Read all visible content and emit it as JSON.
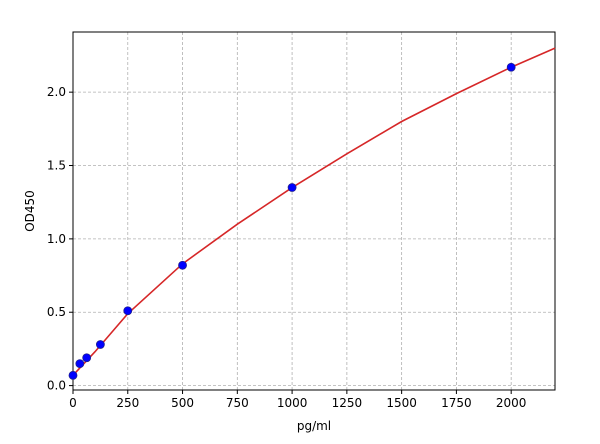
{
  "chart_data": {
    "type": "scatter",
    "xlabel": "pg/ml",
    "ylabel": "OD450",
    "xlim": [
      0,
      2200
    ],
    "ylim": [
      -0.03,
      2.41
    ],
    "xticks": [
      0,
      250,
      500,
      750,
      1000,
      1250,
      1500,
      1750,
      2000
    ],
    "yticks": [
      {
        "value": 0,
        "label": "0.0"
      },
      0.5,
      {
        "value": 1,
        "label": "1.0"
      },
      1.5,
      {
        "value": 2,
        "label": "2.0"
      }
    ],
    "grid": true,
    "series": [
      {
        "type": "line",
        "color": "#d62728",
        "x": [
          0,
          100,
          250,
          500,
          750,
          1000,
          1250,
          1500,
          1750,
          2000,
          2200
        ],
        "values": [
          0.07,
          0.23,
          0.49,
          0.83,
          1.1,
          1.35,
          1.58,
          1.8,
          1.99,
          2.17,
          2.3
        ]
      },
      {
        "type": "scatter",
        "color": "#0000ff",
        "x": [
          0,
          31.25,
          62.5,
          125,
          250,
          500,
          1000,
          2000
        ],
        "values": [
          0.07,
          0.15,
          0.19,
          0.28,
          0.51,
          0.82,
          1.35,
          2.17
        ]
      }
    ]
  }
}
